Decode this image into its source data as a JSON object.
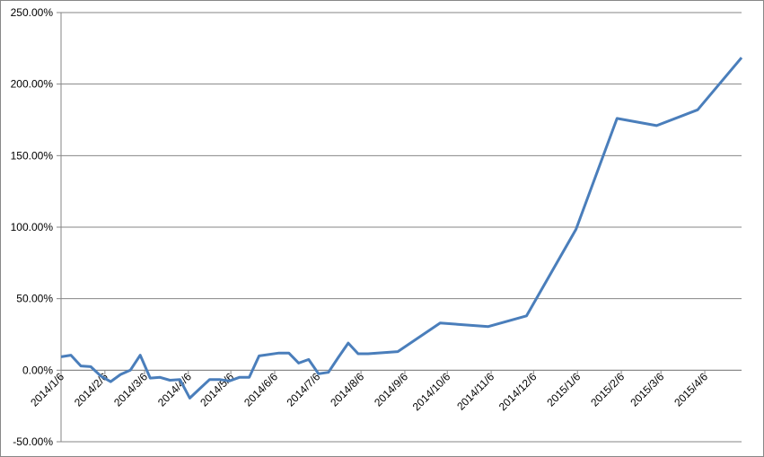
{
  "chart_data": {
    "type": "line",
    "x": [
      "2014/1/6",
      "2014/1/13",
      "2014/1/20",
      "2014/1/27",
      "2014/2/3",
      "2014/2/10",
      "2014/2/17",
      "2014/2/24",
      "2014/3/3",
      "2014/3/10",
      "2014/3/17",
      "2014/3/24",
      "2014/3/31",
      "2014/4/7",
      "2014/4/14",
      "2014/4/21",
      "2014/4/28",
      "2014/5/5",
      "2014/5/12",
      "2014/5/19",
      "2014/5/26",
      "2014/6/9",
      "2014/6/16",
      "2014/6/23",
      "2014/6/30",
      "2014/7/7",
      "2014/7/14",
      "2014/7/21",
      "2014/7/28",
      "2014/8/4",
      "2014/8/11",
      "2014/9/1",
      "2014/10/1",
      "2014/11/4",
      "2014/12/1",
      "2015/1/5",
      "2015/2/3",
      "2015/3/3",
      "2015/4/1",
      "2015/5/2"
    ],
    "series": [
      {
        "color": "#4a7ebb",
        "values": [
          9.4,
          10.5,
          3,
          2.5,
          -4,
          -8,
          -3,
          0,
          10.5,
          -5.5,
          -5,
          -7,
          -6.5,
          -19.5,
          -13,
          -6.5,
          -6.5,
          -7.5,
          -5,
          -5,
          10,
          12,
          12,
          5,
          7.5,
          -2.5,
          -1.5,
          9,
          19,
          11.5,
          11.5,
          13,
          33,
          30.5,
          38,
          98.5,
          176,
          171,
          182,
          218.5
        ]
      }
    ],
    "xlim": [
      "2014/1/6",
      "2015/5/2"
    ],
    "xticks": [
      "2014/1/6",
      "2014/2/6",
      "2014/3/6",
      "2014/4/6",
      "2014/5/6",
      "2014/6/6",
      "2014/7/6",
      "2014/8/6",
      "2014/9/6",
      "2014/10/6",
      "2014/11/6",
      "2014/12/6",
      "2015/1/6",
      "2015/2/6",
      "2015/3/6",
      "2015/4/6"
    ],
    "ylim": [
      -50,
      250
    ],
    "yticks": [
      {
        "value": -50,
        "label": "-50.00%"
      },
      {
        "value": 0,
        "label": "0.00%"
      },
      {
        "value": 50,
        "label": "50.00%"
      },
      {
        "value": 100,
        "label": "100.00%"
      },
      {
        "value": 150,
        "label": "150.00%"
      },
      {
        "value": 200,
        "label": "200.00%"
      },
      {
        "value": 250,
        "label": "250.00%"
      }
    ],
    "grid": true
  }
}
